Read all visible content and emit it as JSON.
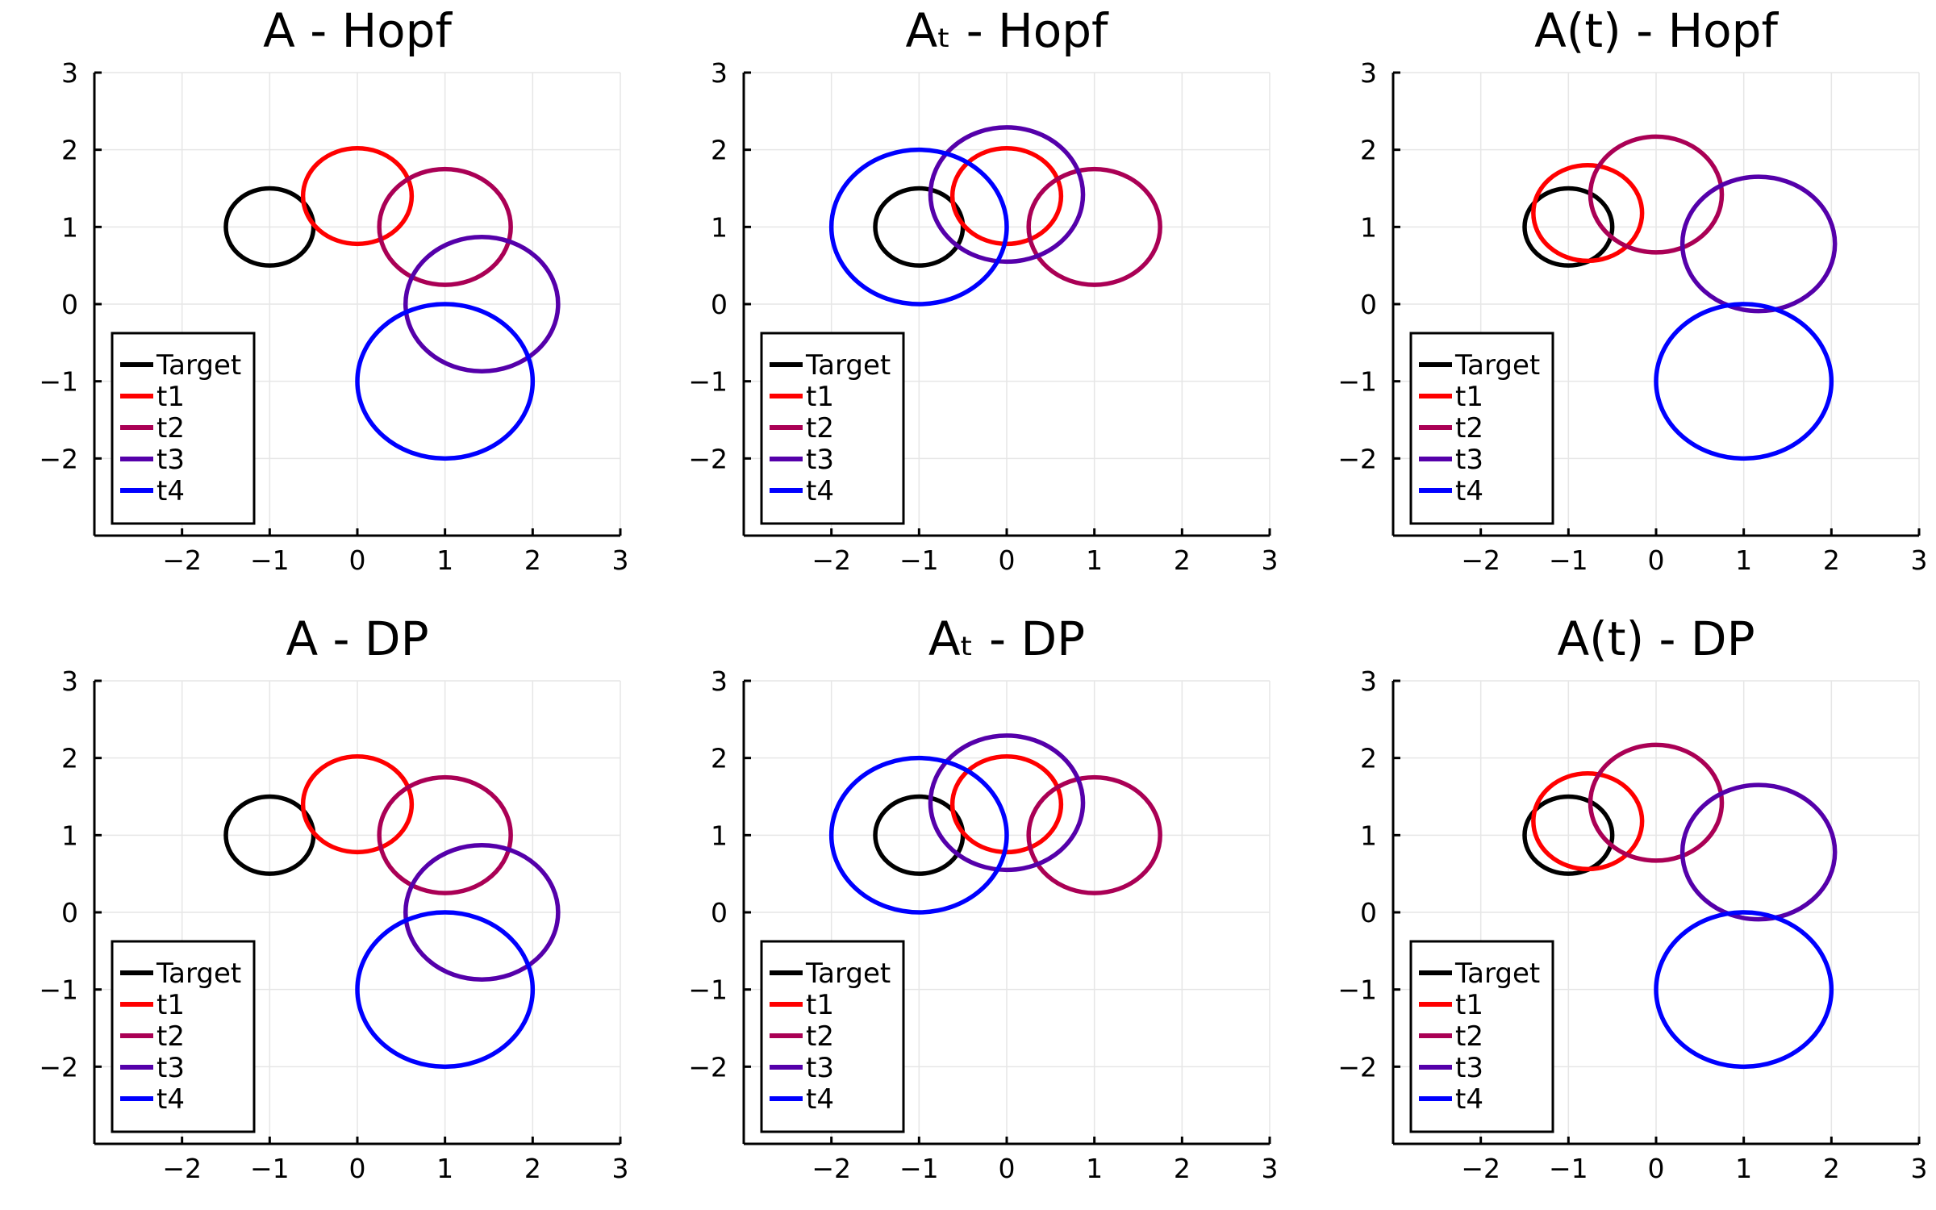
{
  "chart_data": [
    {
      "type": "line",
      "title": "A - Hopf",
      "xlim": [
        -3,
        3
      ],
      "ylim": [
        -3,
        3
      ],
      "xticks": [
        -2,
        -1,
        0,
        1,
        2,
        3
      ],
      "yticks": [
        -2,
        -1,
        0,
        1,
        2,
        3
      ],
      "xtick_labels": [
        "−2",
        "−1",
        "0",
        "1",
        "2",
        "3"
      ],
      "ytick_labels": [
        "−2",
        "−1",
        "0",
        "1",
        "2",
        "3"
      ],
      "grid": true,
      "legend": "bottom-left",
      "series": [
        {
          "name": "Target",
          "color": "#000000",
          "cx": -1.0,
          "cy": 1.0,
          "rx": 0.5,
          "ry": 0.5
        },
        {
          "name": "t1",
          "color": "#ff0000",
          "cx": 0.0,
          "cy": 1.4,
          "rx": 0.62,
          "ry": 0.62
        },
        {
          "name": "t2",
          "color": "#aa0055",
          "cx": 1.0,
          "cy": 1.0,
          "rx": 0.75,
          "ry": 0.75
        },
        {
          "name": "t3",
          "color": "#5500aa",
          "cx": 1.42,
          "cy": 0.0,
          "rx": 0.87,
          "ry": 0.87
        },
        {
          "name": "t4",
          "color": "#0000ff",
          "cx": 1.0,
          "cy": -1.0,
          "rx": 1.0,
          "ry": 1.0
        }
      ]
    },
    {
      "type": "line",
      "title": "Aₜ - Hopf",
      "xlim": [
        -3,
        3
      ],
      "ylim": [
        -3,
        3
      ],
      "xticks": [
        -2,
        -1,
        0,
        1,
        2,
        3
      ],
      "yticks": [
        -2,
        -1,
        0,
        1,
        2,
        3
      ],
      "xtick_labels": [
        "−2",
        "−1",
        "0",
        "1",
        "2",
        "3"
      ],
      "ytick_labels": [
        "−2",
        "−1",
        "0",
        "1",
        "2",
        "3"
      ],
      "grid": true,
      "legend": "bottom-left",
      "series": [
        {
          "name": "Target",
          "color": "#000000",
          "cx": -1.0,
          "cy": 1.0,
          "rx": 0.5,
          "ry": 0.5
        },
        {
          "name": "t1",
          "color": "#ff0000",
          "cx": 0.0,
          "cy": 1.4,
          "rx": 0.62,
          "ry": 0.62
        },
        {
          "name": "t2",
          "color": "#aa0055",
          "cx": 1.0,
          "cy": 1.0,
          "rx": 0.75,
          "ry": 0.75
        },
        {
          "name": "t3",
          "color": "#5500aa",
          "cx": 0.0,
          "cy": 1.42,
          "rx": 0.87,
          "ry": 0.87
        },
        {
          "name": "t4",
          "color": "#0000ff",
          "cx": -1.0,
          "cy": 1.0,
          "rx": 1.0,
          "ry": 1.0
        }
      ]
    },
    {
      "type": "line",
      "title": "A(t) - Hopf",
      "xlim": [
        -3,
        3
      ],
      "ylim": [
        -3,
        3
      ],
      "xticks": [
        -2,
        -1,
        0,
        1,
        2,
        3
      ],
      "yticks": [
        -2,
        -1,
        0,
        1,
        2,
        3
      ],
      "xtick_labels": [
        "−2",
        "−1",
        "0",
        "1",
        "2",
        "3"
      ],
      "ytick_labels": [
        "−2",
        "−1",
        "0",
        "1",
        "2",
        "3"
      ],
      "grid": true,
      "legend": "bottom-left",
      "series": [
        {
          "name": "Target",
          "color": "#000000",
          "cx": -1.0,
          "cy": 1.0,
          "rx": 0.5,
          "ry": 0.5
        },
        {
          "name": "t1",
          "color": "#ff0000",
          "cx": -0.78,
          "cy": 1.18,
          "rx": 0.62,
          "ry": 0.62
        },
        {
          "name": "t2",
          "color": "#aa0055",
          "cx": 0.0,
          "cy": 1.42,
          "rx": 0.75,
          "ry": 0.75
        },
        {
          "name": "t3",
          "color": "#5500aa",
          "cx": 1.17,
          "cy": 0.78,
          "rx": 0.87,
          "ry": 0.87
        },
        {
          "name": "t4",
          "color": "#0000ff",
          "cx": 1.0,
          "cy": -1.0,
          "rx": 1.0,
          "ry": 1.0
        }
      ]
    },
    {
      "type": "line",
      "title": "A - DP",
      "xlim": [
        -3,
        3
      ],
      "ylim": [
        -3,
        3
      ],
      "xticks": [
        -2,
        -1,
        0,
        1,
        2,
        3
      ],
      "yticks": [
        -2,
        -1,
        0,
        1,
        2,
        3
      ],
      "xtick_labels": [
        "−2",
        "−1",
        "0",
        "1",
        "2",
        "3"
      ],
      "ytick_labels": [
        "−2",
        "−1",
        "0",
        "1",
        "2",
        "3"
      ],
      "grid": true,
      "legend": "bottom-left",
      "series": [
        {
          "name": "Target",
          "color": "#000000",
          "cx": -1.0,
          "cy": 1.0,
          "rx": 0.5,
          "ry": 0.5
        },
        {
          "name": "t1",
          "color": "#ff0000",
          "cx": 0.0,
          "cy": 1.4,
          "rx": 0.62,
          "ry": 0.62
        },
        {
          "name": "t2",
          "color": "#aa0055",
          "cx": 1.0,
          "cy": 1.0,
          "rx": 0.75,
          "ry": 0.75
        },
        {
          "name": "t3",
          "color": "#5500aa",
          "cx": 1.42,
          "cy": 0.0,
          "rx": 0.87,
          "ry": 0.87
        },
        {
          "name": "t4",
          "color": "#0000ff",
          "cx": 1.0,
          "cy": -1.0,
          "rx": 1.0,
          "ry": 1.0
        }
      ]
    },
    {
      "type": "line",
      "title": "Aₜ - DP",
      "xlim": [
        -3,
        3
      ],
      "ylim": [
        -3,
        3
      ],
      "xticks": [
        -2,
        -1,
        0,
        1,
        2,
        3
      ],
      "yticks": [
        -2,
        -1,
        0,
        1,
        2,
        3
      ],
      "xtick_labels": [
        "−2",
        "−1",
        "0",
        "1",
        "2",
        "3"
      ],
      "ytick_labels": [
        "−2",
        "−1",
        "0",
        "1",
        "2",
        "3"
      ],
      "grid": true,
      "legend": "bottom-left",
      "series": [
        {
          "name": "Target",
          "color": "#000000",
          "cx": -1.0,
          "cy": 1.0,
          "rx": 0.5,
          "ry": 0.5
        },
        {
          "name": "t1",
          "color": "#ff0000",
          "cx": 0.0,
          "cy": 1.4,
          "rx": 0.62,
          "ry": 0.62
        },
        {
          "name": "t2",
          "color": "#aa0055",
          "cx": 1.0,
          "cy": 1.0,
          "rx": 0.75,
          "ry": 0.75
        },
        {
          "name": "t3",
          "color": "#5500aa",
          "cx": 0.0,
          "cy": 1.42,
          "rx": 0.87,
          "ry": 0.87
        },
        {
          "name": "t4",
          "color": "#0000ff",
          "cx": -1.0,
          "cy": 1.0,
          "rx": 1.0,
          "ry": 1.0
        }
      ]
    },
    {
      "type": "line",
      "title": "A(t) - DP",
      "xlim": [
        -3,
        3
      ],
      "ylim": [
        -3,
        3
      ],
      "xticks": [
        -2,
        -1,
        0,
        1,
        2,
        3
      ],
      "yticks": [
        -2,
        -1,
        0,
        1,
        2,
        3
      ],
      "xtick_labels": [
        "−2",
        "−1",
        "0",
        "1",
        "2",
        "3"
      ],
      "ytick_labels": [
        "−2",
        "−1",
        "0",
        "1",
        "2",
        "3"
      ],
      "grid": true,
      "legend": "bottom-left",
      "series": [
        {
          "name": "Target",
          "color": "#000000",
          "cx": -1.0,
          "cy": 1.0,
          "rx": 0.5,
          "ry": 0.5
        },
        {
          "name": "t1",
          "color": "#ff0000",
          "cx": -0.78,
          "cy": 1.18,
          "rx": 0.62,
          "ry": 0.62
        },
        {
          "name": "t2",
          "color": "#aa0055",
          "cx": 0.0,
          "cy": 1.42,
          "rx": 0.75,
          "ry": 0.75
        },
        {
          "name": "t3",
          "color": "#5500aa",
          "cx": 1.17,
          "cy": 0.78,
          "rx": 0.87,
          "ry": 0.87
        },
        {
          "name": "t4",
          "color": "#0000ff",
          "cx": 1.0,
          "cy": -1.0,
          "rx": 1.0,
          "ry": 1.0
        }
      ]
    }
  ]
}
